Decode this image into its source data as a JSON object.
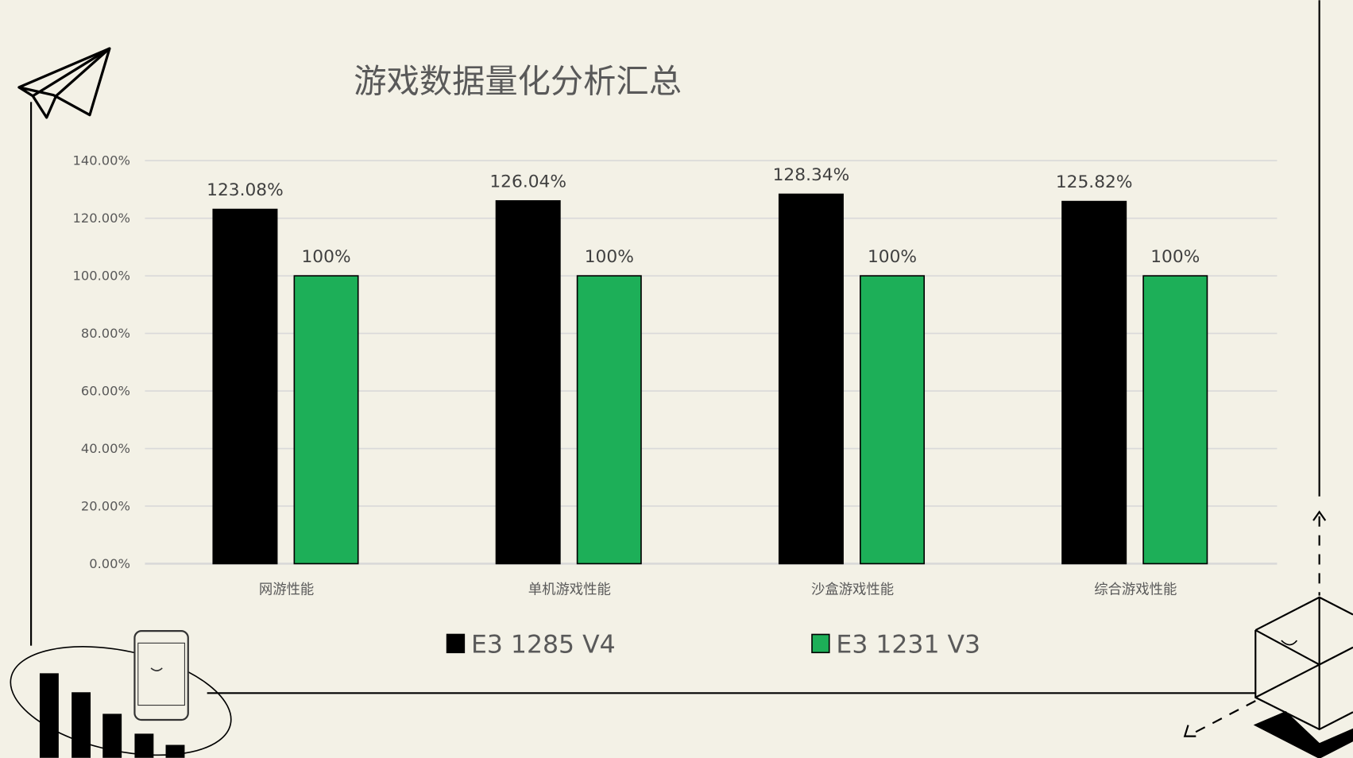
{
  "chart_data": {
    "type": "bar",
    "title": "游戏数据量化分析汇总",
    "categories": [
      "网游性能",
      "单机游戏性能",
      "沙盒游戏性能",
      "综合游戏性能"
    ],
    "series": [
      {
        "name": "E3 1285 V4",
        "values": [
          123.08,
          126.04,
          128.34,
          125.82
        ],
        "labels": [
          "123.08%",
          "126.04%",
          "128.34%",
          "125.82%"
        ],
        "color": "#000000"
      },
      {
        "name": "E3 1231 V3",
        "values": [
          100,
          100,
          100,
          100
        ],
        "labels": [
          "100%",
          "100%",
          "100%",
          "100%"
        ],
        "color": "#1daf58"
      }
    ],
    "yticks": [
      "0.00%",
      "20.00%",
      "40.00%",
      "60.00%",
      "80.00%",
      "100.00%",
      "120.00%",
      "140.00%"
    ],
    "ylim": [
      0,
      140
    ],
    "xlabel": "",
    "ylabel": "",
    "grid": true,
    "legend": "bottom"
  },
  "colors": {
    "background": "#f3f1e6",
    "grid": "#d9d9d9"
  }
}
